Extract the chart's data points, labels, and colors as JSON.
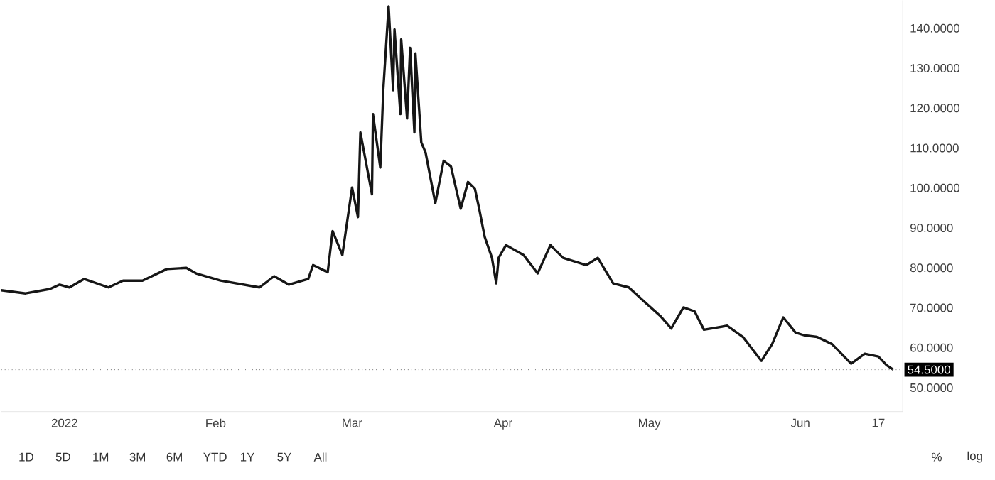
{
  "chart_data": {
    "type": "line",
    "x": [
      "2021-12-19T00:00",
      "2021-12-24T00:00",
      "2021-12-29T00:00",
      "2021-12-31T00:00",
      "2022-01-02T00:00",
      "2022-01-05T00:00",
      "2022-01-10T00:00",
      "2022-01-13T00:00",
      "2022-01-17T00:00",
      "2022-01-22T00:00",
      "2022-01-26T00:00",
      "2022-01-28T00:00",
      "2022-02-02T00:00",
      "2022-02-10T00:00",
      "2022-02-13T00:00",
      "2022-02-16T00:00",
      "2022-02-20T00:00",
      "2022-02-21T00:00",
      "2022-02-24T00:00",
      "2022-02-25T00:00",
      "2022-02-27T00:00",
      "2022-03-01T00:00",
      "2022-03-02T05:00",
      "2022-03-02T17:00",
      "2022-03-05T02:00",
      "2022-03-05T07:00",
      "2022-03-06T19:00",
      "2022-03-07T10:00",
      "2022-03-08T12:00",
      "2022-03-09T10:00",
      "2022-03-09T17:00",
      "2022-03-10T22:00",
      "2022-03-11T02:00",
      "2022-03-12T07:00",
      "2022-03-12T22:00",
      "2022-03-13T19:00",
      "2022-03-14T00:00",
      "2022-03-15T05:00",
      "2022-03-16T02:00",
      "2022-03-18T02:00",
      "2022-03-19T19:00",
      "2022-03-21T07:00",
      "2022-03-23T07:00",
      "2022-03-24T19:00",
      "2022-03-26T05:00",
      "2022-03-27T02:00",
      "2022-03-28T05:00",
      "2022-03-29T17:00",
      "2022-03-30T14:00",
      "2022-03-31T02:00",
      "2022-04-01T14:00",
      "2022-04-05T05:00",
      "2022-04-08T02:00",
      "2022-04-10T17:00",
      "2022-04-13T07:00",
      "2022-04-18T02:00",
      "2022-04-20T10:00",
      "2022-04-23T14:00",
      "2022-04-26T19:00",
      "2022-04-30T00:00",
      "2022-05-03T05:00",
      "2022-05-05T12:00",
      "2022-05-08T00:00",
      "2022-05-10T07:00",
      "2022-05-12T05:00",
      "2022-05-17T00:00",
      "2022-05-20T05:00",
      "2022-05-24T00:00",
      "2022-05-26T05:00",
      "2022-05-28T12:00",
      "2022-05-31T00:00",
      "2022-06-01T19:00",
      "2022-06-04T10:00",
      "2022-06-07T12:00",
      "2022-06-11T10:00",
      "2022-06-14T05:00",
      "2022-06-17T00:00",
      "2022-06-18T17:00",
      "2022-06-20T02:00"
    ],
    "series": [
      {
        "color": "#161616",
        "values": [
          74.4,
          73.6,
          74.7,
          75.8,
          75.1,
          77.2,
          75.1,
          76.8,
          76.8,
          79.7,
          80.0,
          78.6,
          76.8,
          75.1,
          77.9,
          75.8,
          77.2,
          80.7,
          78.9,
          89.2,
          83.2,
          100.1,
          92.7,
          113.9,
          98.4,
          118.5,
          105.1,
          124.8,
          145.5,
          124.5,
          139.7,
          118.5,
          137.2,
          117.4,
          135.1,
          113.9,
          133.7,
          111.4,
          108.9,
          96.2,
          106.8,
          105.4,
          94.8,
          101.5,
          99.8,
          94.8,
          87.8,
          82.5,
          76.1,
          82.5,
          85.7,
          83.2,
          78.6,
          85.7,
          82.5,
          80.7,
          82.5,
          76.1,
          75.1,
          71.5,
          68.0,
          64.8,
          70.1,
          69.1,
          64.5,
          65.5,
          62.7,
          56.7,
          60.9,
          67.6,
          63.8,
          63.1,
          62.7,
          60.9,
          56.0,
          58.5,
          57.8,
          55.6,
          54.5
        ]
      }
    ],
    "xlim": [
      "2021-12-19",
      "2022-06-22"
    ],
    "xticks": [
      {
        "value": "2022-01-01",
        "label": "2022"
      },
      {
        "value": "2022-02-01",
        "label": "Feb"
      },
      {
        "value": "2022-03-01",
        "label": "Mar"
      },
      {
        "value": "2022-04-01",
        "label": "Apr"
      },
      {
        "value": "2022-05-01",
        "label": "May"
      },
      {
        "value": "2022-06-01",
        "label": "Jun"
      },
      {
        "value": "2022-06-17",
        "label": "17"
      }
    ],
    "ylim": [
      44,
      147
    ],
    "yticks": [
      {
        "value": 50,
        "label": "50.0000"
      },
      {
        "value": 60,
        "label": "60.0000"
      },
      {
        "value": 70,
        "label": "70.0000"
      },
      {
        "value": 80,
        "label": "80.0000"
      },
      {
        "value": 90,
        "label": "90.0000"
      },
      {
        "value": 100,
        "label": "100.0000"
      },
      {
        "value": 110,
        "label": "110.0000"
      },
      {
        "value": 120,
        "label": "120.0000"
      },
      {
        "value": 130,
        "label": "130.0000"
      },
      {
        "value": 140,
        "label": "140.0000"
      }
    ],
    "ref_lines": [
      {
        "axis": "y",
        "value": 54.5,
        "label": "54.5000",
        "color": "#777777",
        "line_style": "dotted"
      }
    ],
    "annotations": [
      "1D",
      "5D",
      "1M",
      "3M",
      "6M",
      "YTD",
      "1Y",
      "5Y",
      "All",
      "%",
      "log"
    ],
    "grid": false,
    "marker": "none",
    "line_style": "solid"
  }
}
